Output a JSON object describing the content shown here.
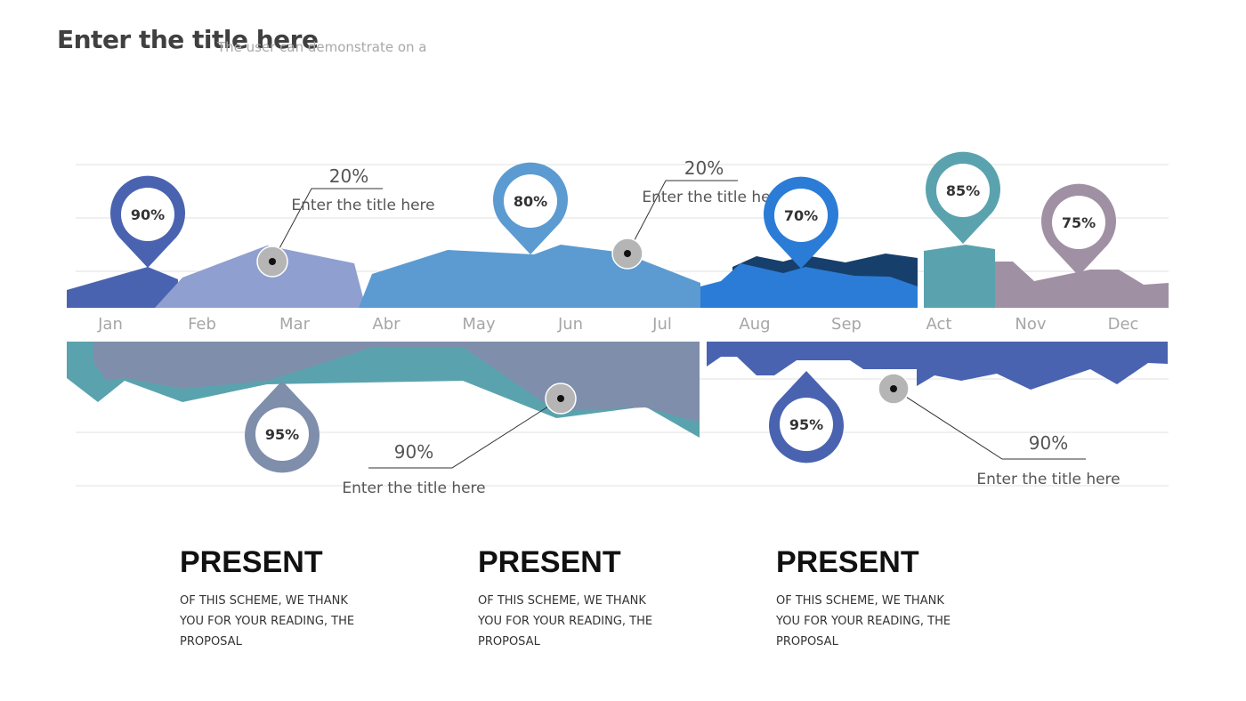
{
  "header": {
    "title": "Enter the title here",
    "subtitle": "The user can demonstrate on a"
  },
  "colors": {
    "navy": "#4a63b0",
    "periwinkle": "#8f9fcf",
    "steel_blue": "#5b9bd1",
    "royal_blue": "#2b7cd6",
    "dark_navy": "#173f6b",
    "teal": "#5aa3ae",
    "mauve": "#a090a3",
    "slate": "#7f8eab",
    "grid": "#e2e2e2",
    "marker_gray": "#b5b5b5"
  },
  "chart_data": {
    "type": "area",
    "categories": [
      "Jan",
      "Feb",
      "Mar",
      "Abr",
      "May",
      "Jun",
      "Jul",
      "Aug",
      "Sep",
      "Act",
      "Nov",
      "Dec"
    ],
    "top_pins": [
      {
        "month": "Jan",
        "label": "90%",
        "color": "#4a63b0"
      },
      {
        "month": "Jun",
        "label": "80%",
        "color": "#5b9bd1"
      },
      {
        "month": "Sep",
        "label": "70%",
        "color": "#2b7cd6"
      },
      {
        "month": "Act",
        "label": "85%",
        "color": "#5aa3ae"
      },
      {
        "month": "Dec",
        "label": "75%",
        "color": "#a090a3"
      }
    ],
    "bottom_pins": [
      {
        "month": "Mar",
        "label": "95%",
        "color": "#7f8eab"
      },
      {
        "month": "Aug",
        "label": "95%",
        "color": "#4a63b0"
      }
    ],
    "callouts": [
      {
        "value": "20%",
        "text": "Enter the title here"
      },
      {
        "value": "20%",
        "text": "Enter the title here"
      },
      {
        "value": "90%",
        "text": "Enter the title here"
      },
      {
        "value": "90%",
        "text": "Enter the title here"
      }
    ]
  },
  "present_blocks": [
    {
      "heading": "PRESENT",
      "body": "OF THIS SCHEME, WE THANK YOU FOR YOUR READING, THE PROPOSAL"
    },
    {
      "heading": "PRESENT",
      "body": "OF THIS SCHEME, WE THANK YOU FOR YOUR READING, THE PROPOSAL"
    },
    {
      "heading": "PRESENT",
      "body": "OF THIS SCHEME, WE THANK YOU FOR YOUR READING, THE PROPOSAL"
    }
  ]
}
